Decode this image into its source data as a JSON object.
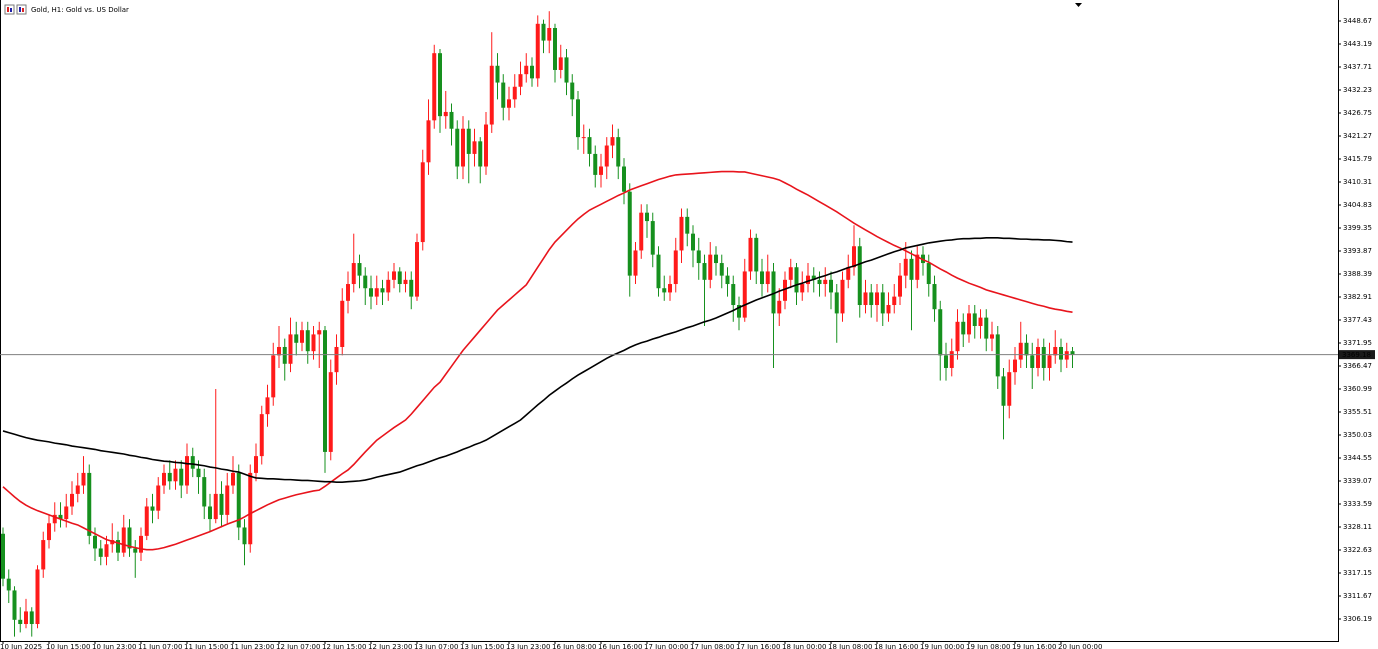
{
  "chart_data": {
    "type": "candlestick",
    "title": "Gold, H1: Gold vs. US Dollar",
    "categories": [
      "10 Jun 2025",
      null,
      null,
      null,
      null,
      null,
      null,
      null,
      "10 Jun 15:00",
      null,
      null,
      null,
      null,
      null,
      null,
      null,
      "10 Jun 23:00",
      null,
      null,
      null,
      null,
      null,
      null,
      null,
      "11 Jun 07:00",
      null,
      null,
      null,
      null,
      null,
      null,
      null,
      "11 Jun 15:00",
      null,
      null,
      null,
      null,
      null,
      null,
      null,
      "11 Jun 23:00",
      null,
      null,
      null,
      null,
      null,
      null,
      null,
      "12 Jun 07:00",
      null,
      null,
      null,
      null,
      null,
      null,
      null,
      "12 Jun 15:00",
      null,
      null,
      null,
      null,
      null,
      null,
      null,
      "12 Jun 23:00",
      null,
      null,
      null,
      null,
      null,
      null,
      null,
      "13 Jun 07:00",
      null,
      null,
      null,
      null,
      null,
      null,
      null,
      "13 Jun 15:00",
      null,
      null,
      null,
      null,
      null,
      null,
      null,
      "13 Jun 23:00",
      null,
      null,
      null,
      null,
      null,
      null,
      null,
      "16 Jun 08:00",
      null,
      null,
      null,
      null,
      null,
      null,
      null,
      "16 Jun 16:00",
      null,
      null,
      null,
      null,
      null,
      null,
      null,
      "17 Jun 00:00",
      null,
      null,
      null,
      null,
      null,
      null,
      null,
      "17 Jun 08:00",
      null,
      null,
      null,
      null,
      null,
      null,
      null,
      "17 Jun 16:00",
      null,
      null,
      null,
      null,
      null,
      null,
      null,
      "18 Jun 00:00",
      null,
      null,
      null,
      null,
      null,
      null,
      null,
      "18 Jun 08:00",
      null,
      null,
      null,
      null,
      null,
      null,
      null,
      "18 Jun 16:00",
      null,
      null,
      null,
      null,
      null,
      null,
      null,
      "19 Jun 00:00",
      null,
      null,
      null,
      null,
      null,
      null,
      null,
      "19 Jun 08:00",
      null,
      null,
      null,
      null,
      null,
      null,
      null,
      "19 Jun 16:00",
      null,
      null,
      null,
      null,
      null,
      null,
      null,
      "20 Jun 00:00",
      null,
      null
    ],
    "open": [
      3326.5,
      3315.8,
      3313,
      3306,
      3305,
      3308,
      3305,
      3318,
      3325,
      3329,
      3331,
      3330,
      3333,
      3336,
      3338,
      3341,
      3326,
      3323,
      3321,
      3324,
      3325,
      3322,
      3328,
      3323,
      3322,
      3326,
      3333,
      3332,
      3338,
      3341,
      3339,
      3342,
      3338,
      3345,
      3342,
      3340,
      3333,
      3330,
      3336,
      3331,
      3338,
      3341,
      3328,
      3324,
      3341,
      3345,
      3355,
      3359,
      3369,
      3371,
      3367,
      3374,
      3372,
      3375,
      3370,
      3374,
      3375,
      3346,
      3365,
      3371,
      3382,
      3386,
      3391,
      3388,
      3385,
      3383,
      3385,
      3384,
      3387,
      3389,
      3386,
      3387,
      3383,
      3396,
      3415,
      3425,
      3441,
      3426,
      3427,
      3423,
      3414,
      3423,
      3417,
      3420,
      3414,
      3424,
      3438,
      3434,
      3428,
      3430,
      3433,
      3436,
      3438,
      3435,
      3448,
      3444,
      3447,
      3437,
      3440,
      3434,
      3430,
      3421,
      3421,
      3417,
      3412,
      3414,
      3419,
      3421,
      3414,
      3408,
      3388,
      3394,
      3403,
      3401,
      3393,
      3385,
      3384,
      3386,
      3394,
      3402,
      3398,
      3394,
      3391,
      3387,
      3393,
      3391,
      3388,
      3386,
      3381,
      3378,
      3389,
      3397,
      3389,
      3386,
      3389,
      3379,
      3382,
      3387,
      3390,
      3384,
      3386,
      3388,
      3387,
      3386,
      3387,
      3384,
      3379,
      3387,
      3390,
      3395,
      3381,
      3384,
      3381,
      3384,
      3379,
      3381,
      3383,
      3388,
      3392,
      3387,
      3393,
      3391,
      3386,
      3380,
      3369,
      3366,
      3370,
      3377,
      3374,
      3379,
      3376,
      3378,
      3373,
      3374,
      3364,
      3357,
      3365,
      3368,
      3372,
      3369,
      3366,
      3371,
      3366,
      3369,
      3371,
      3368,
      3370
    ],
    "high": [
      3328,
      3318,
      3314,
      3309,
      3311,
      3309,
      3319,
      3327,
      3331,
      3334,
      3334,
      3336,
      3339,
      3341,
      3345,
      3343,
      3328,
      3325,
      3326,
      3329,
      3327,
      3331,
      3330,
      3325,
      3328,
      3335,
      3336,
      3340,
      3343,
      3344,
      3344,
      3344,
      3348,
      3347,
      3344,
      3342,
      3336,
      3361,
      3339,
      3341,
      3345,
      3343,
      3330,
      3343,
      3348,
      3357,
      3362,
      3372,
      3376,
      3373,
      3378,
      3377,
      3377,
      3377,
      3376,
      3377,
      3376,
      3368,
      3374,
      3385,
      3389,
      3398,
      3393,
      3390,
      3388,
      3388,
      3387,
      3389,
      3391,
      3390,
      3389,
      3389,
      3398,
      3418,
      3430,
      3443,
      3442,
      3432,
      3429,
      3425,
      3426,
      3425,
      3423,
      3421,
      3427,
      3446,
      3441,
      3436,
      3433,
      3436,
      3439,
      3441,
      3440,
      3450,
      3449,
      3451,
      3448,
      3443,
      3442,
      3436,
      3432,
      3424,
      3423,
      3419,
      3417,
      3421,
      3424,
      3423,
      3416,
      3410,
      3396,
      3405,
      3405,
      3403,
      3395,
      3388,
      3388,
      3397,
      3404,
      3404,
      3400,
      3397,
      3393,
      3396,
      3395,
      3393,
      3390,
      3388,
      3383,
      3392,
      3399,
      3398,
      3392,
      3393,
      3391,
      3385,
      3389,
      3392,
      3391,
      3389,
      3391,
      3390,
      3389,
      3390,
      3389,
      3386,
      3389,
      3393,
      3400,
      3397,
      3387,
      3386,
      3386,
      3386,
      3384,
      3386,
      3391,
      3396,
      3394,
      3395,
      3395,
      3393,
      3388,
      3382,
      3372,
      3373,
      3380,
      3379,
      3381,
      3381,
      3380,
      3380,
      3377,
      3376,
      3366,
      3368,
      3371,
      3377,
      3374,
      3372,
      3373,
      3373,
      3372,
      3375,
      3373,
      3372,
      3371
    ],
    "low": [
      3314,
      3310,
      3302,
      3303,
      3304,
      3302,
      3304,
      3316,
      3323,
      3327,
      3328,
      3328,
      3331,
      3334,
      3336,
      3324,
      3320,
      3319,
      3319,
      3322,
      3320,
      3321,
      3321,
      3316,
      3320,
      3325,
      3329,
      3330,
      3336,
      3337,
      3337,
      3335,
      3336,
      3340,
      3336,
      3330,
      3327,
      3329,
      3328,
      3329,
      3336,
      3325,
      3319,
      3322,
      3339,
      3343,
      3352,
      3357,
      3366,
      3363,
      3365,
      3369,
      3370,
      3367,
      3368,
      3366,
      3341,
      3344,
      3362,
      3369,
      3379,
      3384,
      3385,
      3381,
      3380,
      3381,
      3381,
      3382,
      3385,
      3384,
      3384,
      3380,
      3382,
      3394,
      3412,
      3423,
      3422,
      3423,
      3419,
      3411,
      3411,
      3410,
      3414,
      3410,
      3412,
      3422,
      3430,
      3425,
      3425,
      3428,
      3431,
      3434,
      3433,
      3433,
      3441,
      3441,
      3434,
      3435,
      3431,
      3426,
      3418,
      3417,
      3414,
      3409,
      3409,
      3411,
      3416,
      3411,
      3405,
      3383,
      3386,
      3392,
      3397,
      3390,
      3383,
      3382,
      3382,
      3384,
      3391,
      3395,
      3390,
      3387,
      3376,
      3385,
      3388,
      3385,
      3383,
      3377,
      3375,
      3377,
      3387,
      3386,
      3383,
      3384,
      3366,
      3376,
      3380,
      3385,
      3381,
      3382,
      3384,
      3384,
      3383,
      3383,
      3380,
      3372,
      3377,
      3385,
      3388,
      3378,
      3379,
      3378,
      3377,
      3376,
      3377,
      3379,
      3381,
      3385,
      3375,
      3385,
      3388,
      3383,
      3377,
      3363,
      3363,
      3364,
      3368,
      3371,
      3372,
      3373,
      3373,
      3370,
      3370,
      3361,
      3349,
      3354,
      3362,
      3366,
      3366,
      3361,
      3364,
      3363,
      3363,
      3367,
      3365,
      3366,
      3366
    ],
    "close": [
      3315.8,
      3313,
      3306,
      3305,
      3308,
      3305,
      3318,
      3325,
      3329,
      3331,
      3330,
      3333,
      3336,
      3338,
      3341,
      3326,
      3323,
      3321,
      3324,
      3325,
      3322,
      3328,
      3323,
      3322,
      3326,
      3333,
      3332,
      3338,
      3341,
      3339,
      3342,
      3338,
      3345,
      3342,
      3340,
      3333,
      3330,
      3336,
      3331,
      3338,
      3341,
      3328,
      3324,
      3341,
      3345,
      3355,
      3359,
      3369,
      3371,
      3367,
      3374,
      3372,
      3375,
      3370,
      3374,
      3375,
      3346,
      3365,
      3371,
      3382,
      3386,
      3391,
      3388,
      3385,
      3383,
      3385,
      3384,
      3387,
      3389,
      3386,
      3387,
      3383,
      3396,
      3415,
      3425,
      3441,
      3426,
      3427,
      3423,
      3414,
      3423,
      3417,
      3420,
      3414,
      3424,
      3438,
      3434,
      3428,
      3430,
      3433,
      3436,
      3438,
      3435,
      3448,
      3444,
      3447,
      3437,
      3440,
      3434,
      3430,
      3421,
      3421,
      3417,
      3412,
      3414,
      3419,
      3421,
      3414,
      3408,
      3388,
      3394,
      3403,
      3401,
      3393,
      3385,
      3384,
      3386,
      3394,
      3402,
      3398,
      3394,
      3391,
      3387,
      3393,
      3391,
      3388,
      3386,
      3381,
      3378,
      3389,
      3397,
      3389,
      3386,
      3389,
      3379,
      3382,
      3387,
      3390,
      3384,
      3386,
      3388,
      3387,
      3386,
      3387,
      3384,
      3379,
      3387,
      3390,
      3395,
      3381,
      3384,
      3381,
      3384,
      3379,
      3381,
      3383,
      3388,
      3392,
      3387,
      3393,
      3391,
      3386,
      3380,
      3369,
      3366,
      3370,
      3377,
      3374,
      3379,
      3376,
      3378,
      3373,
      3374,
      3364,
      3357,
      3365,
      3368,
      3372,
      3369,
      3366,
      3371,
      3366,
      3369,
      3371,
      3368,
      3370,
      3369.18
    ],
    "up_color": "#ff1a1a",
    "down_color": "#16901e",
    "lines": [
      {
        "color": "#e8141c",
        "values": [
          3337.7,
          3336.5,
          3335.3,
          3334.2,
          3333.3,
          3332.6,
          3332.0,
          3331.5,
          3331.0,
          3330.5,
          3330.0,
          3329.5,
          3329.0,
          3328.6,
          3327.9,
          3327.2,
          3326.5,
          3325.8,
          3325.1,
          3324.7,
          3324.3,
          3323.9,
          3323.5,
          3323.2,
          3322.9,
          3322.7,
          3322.7,
          3322.9,
          3323.2,
          3323.6,
          3324.0,
          3324.5,
          3325.0,
          3325.5,
          3326.0,
          3326.5,
          3327.0,
          3327.6,
          3328.2,
          3328.8,
          3329.3,
          3329.8,
          3330.5,
          3331.3,
          3332.0,
          3332.7,
          3333.4,
          3334.0,
          3334.6,
          3335.0,
          3335.4,
          3335.8,
          3336.1,
          3336.4,
          3336.7,
          3336.9,
          3337.8,
          3338.8,
          3339.8,
          3340.8,
          3341.7,
          3343.0,
          3344.5,
          3346.0,
          3347.4,
          3348.8,
          3349.8,
          3350.8,
          3351.8,
          3352.7,
          3353.6,
          3355.0,
          3356.6,
          3358.2,
          3359.8,
          3361.4,
          3362.6,
          3364.5,
          3366.4,
          3368.3,
          3370.2,
          3371.8,
          3373.4,
          3375.0,
          3376.6,
          3378.2,
          3379.8,
          3381.0,
          3382.2,
          3383.4,
          3384.6,
          3385.8,
          3387.9,
          3390.0,
          3392.1,
          3394.2,
          3396.0,
          3397.4,
          3398.8,
          3400.2,
          3401.5,
          3402.6,
          3403.6,
          3404.3,
          3405.0,
          3405.7,
          3406.4,
          3407.1,
          3407.7,
          3408.4,
          3408.9,
          3409.4,
          3409.9,
          3410.4,
          3410.9,
          3411.3,
          3411.7,
          3412.0,
          3412.1,
          3412.2,
          3412.3,
          3412.4,
          3412.5,
          3412.6,
          3412.7,
          3412.8,
          3412.8,
          3412.8,
          3412.7,
          3412.7,
          3412.4,
          3412.1,
          3411.8,
          3411.5,
          3411.2,
          3410.8,
          3410.1,
          3409.4,
          3408.6,
          3407.9,
          3407.2,
          3406.4,
          3405.6,
          3404.8,
          3404.0,
          3403.2,
          3402.3,
          3401.4,
          3400.5,
          3399.7,
          3398.9,
          3398.1,
          3397.3,
          3396.6,
          3395.9,
          3395.2,
          3394.6,
          3393.9,
          3393.2,
          3392.5,
          3391.8,
          3391.2,
          3390.4,
          3389.6,
          3388.9,
          3388.1,
          3387.4,
          3386.8,
          3386.2,
          3385.7,
          3385.2,
          3384.6,
          3384.2,
          3383.8,
          3383.4,
          3383.0,
          3382.6,
          3382.2,
          3381.8,
          3381.4,
          3381.0,
          3380.7,
          3380.3,
          3380.0,
          3379.8,
          3379.5,
          3379.3
        ]
      },
      {
        "color": "#000000",
        "values": [
          3351.0,
          3350.6,
          3350.2,
          3349.8,
          3349.4,
          3349.1,
          3348.8,
          3348.6,
          3348.4,
          3348.1,
          3347.9,
          3347.7,
          3347.4,
          3347.2,
          3347.0,
          3346.8,
          3346.6,
          3346.3,
          3346.1,
          3345.9,
          3345.7,
          3345.5,
          3345.2,
          3345.0,
          3344.7,
          3344.5,
          3344.2,
          3344.0,
          3343.8,
          3343.7,
          3343.5,
          3343.4,
          3343.2,
          3343.1,
          3342.9,
          3342.7,
          3342.4,
          3342.2,
          3341.9,
          3341.7,
          3341.4,
          3341.2,
          3340.7,
          3340.2,
          3339.8,
          3339.7,
          3339.6,
          3339.6,
          3339.5,
          3339.4,
          3339.4,
          3339.3,
          3339.2,
          3339.2,
          3339.1,
          3339.0,
          3338.9,
          3338.9,
          3338.8,
          3338.8,
          3338.9,
          3339.0,
          3339.1,
          3339.3,
          3339.6,
          3340.0,
          3340.3,
          3340.6,
          3340.9,
          3341.2,
          3341.7,
          3342.2,
          3342.7,
          3343.1,
          3343.6,
          3344.1,
          3344.6,
          3345.0,
          3345.5,
          3346.0,
          3346.6,
          3347.1,
          3347.7,
          3348.2,
          3348.8,
          3349.6,
          3350.4,
          3351.2,
          3352.0,
          3352.8,
          3353.6,
          3354.8,
          3356.0,
          3357.2,
          3358.3,
          3359.5,
          3360.5,
          3361.5,
          3362.4,
          3363.4,
          3364.3,
          3365.1,
          3365.9,
          3366.7,
          3367.5,
          3368.3,
          3369.0,
          3369.6,
          3370.2,
          3370.9,
          3371.5,
          3372.0,
          3372.4,
          3372.9,
          3373.3,
          3373.8,
          3374.2,
          3374.6,
          3375.1,
          3375.6,
          3376.0,
          3376.5,
          3377.0,
          3377.4,
          3377.9,
          3378.5,
          3379.1,
          3379.7,
          3380.4,
          3381.0,
          3381.6,
          3382.2,
          3382.7,
          3383.2,
          3383.7,
          3384.3,
          3384.8,
          3385.3,
          3385.8,
          3386.2,
          3386.7,
          3387.1,
          3387.6,
          3388.0,
          3388.5,
          3388.9,
          3389.4,
          3389.9,
          3390.3,
          3390.8,
          3391.3,
          3391.7,
          3392.2,
          3392.7,
          3393.2,
          3393.7,
          3394.1,
          3394.6,
          3394.9,
          3395.2,
          3395.5,
          3395.8,
          3396.0,
          3396.2,
          3396.4,
          3396.5,
          3396.7,
          3396.8,
          3396.8,
          3396.9,
          3396.9,
          3397.0,
          3397.0,
          3397.0,
          3396.9,
          3396.9,
          3396.8,
          3396.7,
          3396.7,
          3396.6,
          3396.6,
          3396.5,
          3396.5,
          3396.4,
          3396.3,
          3396.1,
          3396.0
        ]
      }
    ],
    "last_price": 3369.18,
    "ylim": [
      3301.19,
      3453.67
    ],
    "yticks": [
      3448.67,
      3443.19,
      3437.71,
      3432.23,
      3426.75,
      3421.27,
      3415.79,
      3410.31,
      3404.83,
      3399.35,
      3393.87,
      3388.39,
      3382.91,
      3377.43,
      3371.95,
      3366.47,
      3360.99,
      3355.51,
      3350.03,
      3344.55,
      3339.07,
      3333.59,
      3328.11,
      3322.63,
      3317.15,
      3311.67,
      3306.19
    ],
    "grid": false
  }
}
